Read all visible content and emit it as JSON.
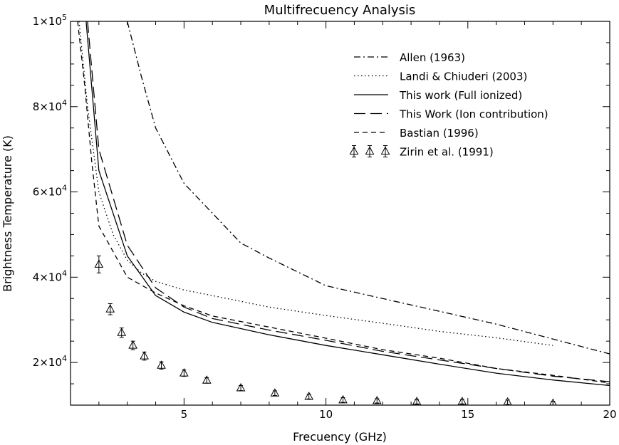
{
  "chart_data": {
    "type": "line",
    "title": "Multifrecuency Analysis",
    "xlabel": "Frecuency (GHz)",
    "ylabel": "Brightness Temperature (K)",
    "xlim": [
      1,
      20
    ],
    "ylim": [
      10000,
      100000
    ],
    "xticks": [
      {
        "value": 5,
        "label": "5"
      },
      {
        "value": 10,
        "label": "10"
      },
      {
        "value": 15,
        "label": "15"
      },
      {
        "value": 20,
        "label": "20"
      }
    ],
    "yticks": [
      {
        "value": 20000,
        "base": "2×10",
        "exp": "4"
      },
      {
        "value": 40000,
        "base": "4×10",
        "exp": "4"
      },
      {
        "value": 60000,
        "base": "6×10",
        "exp": "4"
      },
      {
        "value": 80000,
        "base": "8×10",
        "exp": "4"
      },
      {
        "value": 100000,
        "base": "1×10",
        "exp": "5"
      }
    ],
    "legend_position": "top-right",
    "series": [
      {
        "name": "Allen (1963)",
        "style": "dash-dot",
        "points": [
          [
            3.0,
            100000
          ],
          [
            3.5,
            87000
          ],
          [
            4.0,
            75000
          ],
          [
            5.0,
            62000
          ],
          [
            6.0,
            55000
          ],
          [
            7.0,
            48000
          ],
          [
            8.0,
            44500
          ],
          [
            10.0,
            38000
          ],
          [
            12.0,
            35000
          ],
          [
            14.0,
            32000
          ],
          [
            16.0,
            29000
          ],
          [
            18.0,
            25500
          ],
          [
            20.0,
            22000
          ]
        ]
      },
      {
        "name": "Landi & Chiuderi (2003)",
        "style": "dotted",
        "points": [
          [
            1.3,
            100000
          ],
          [
            1.6,
            80000
          ],
          [
            2.0,
            60000
          ],
          [
            2.5,
            50000
          ],
          [
            3.0,
            44000
          ],
          [
            3.5,
            41000
          ],
          [
            4.0,
            39000
          ],
          [
            5.0,
            37000
          ],
          [
            6.0,
            35700
          ],
          [
            8.0,
            33000
          ],
          [
            10.0,
            31000
          ],
          [
            12.0,
            29200
          ],
          [
            14.0,
            27300
          ],
          [
            16.0,
            25800
          ],
          [
            18.0,
            24000
          ]
        ]
      },
      {
        "name": "This work (Full ionized)",
        "style": "solid",
        "points": [
          [
            1.55,
            100000
          ],
          [
            2.0,
            65000
          ],
          [
            3.0,
            45000
          ],
          [
            4.0,
            35700
          ],
          [
            5.0,
            31800
          ],
          [
            6.0,
            29400
          ],
          [
            8.0,
            26500
          ],
          [
            10.0,
            24000
          ],
          [
            12.0,
            21800
          ],
          [
            14.0,
            19600
          ],
          [
            16.0,
            17500
          ],
          [
            18.0,
            15900
          ],
          [
            20.0,
            14600
          ]
        ]
      },
      {
        "name": "This Work (Ion contribution)",
        "style": "long-dash",
        "points": [
          [
            1.6,
            100000
          ],
          [
            2.0,
            70000
          ],
          [
            3.0,
            47500
          ],
          [
            4.0,
            37500
          ],
          [
            5.0,
            33000
          ],
          [
            6.0,
            30300
          ],
          [
            8.0,
            27600
          ],
          [
            10.0,
            25200
          ],
          [
            12.0,
            22600
          ],
          [
            14.0,
            20600
          ],
          [
            16.0,
            18600
          ],
          [
            18.0,
            16800
          ],
          [
            20.0,
            15500
          ]
        ]
      },
      {
        "name": "Bastian (1996)",
        "style": "short-dash",
        "points": [
          [
            1.25,
            100000
          ],
          [
            1.5,
            85000
          ],
          [
            1.75,
            67000
          ],
          [
            2.0,
            52000
          ],
          [
            2.5,
            46000
          ],
          [
            3.0,
            40000
          ],
          [
            4.0,
            36300
          ],
          [
            5.0,
            33300
          ],
          [
            6.0,
            30900
          ],
          [
            8.0,
            28300
          ],
          [
            10.0,
            25700
          ],
          [
            12.0,
            23000
          ],
          [
            14.0,
            21000
          ],
          [
            16.0,
            18600
          ],
          [
            18.0,
            17000
          ],
          [
            20.0,
            15200
          ]
        ]
      }
    ],
    "markers": {
      "name": "Zirin et al. (1991)",
      "symbol": "triangle-with-error-bars",
      "points": [
        {
          "x": 2.0,
          "y": 43000,
          "err": 2000
        },
        {
          "x": 2.4,
          "y": 32500,
          "err": 1300
        },
        {
          "x": 2.8,
          "y": 27000,
          "err": 1100
        },
        {
          "x": 3.2,
          "y": 24000,
          "err": 1000
        },
        {
          "x": 3.6,
          "y": 21500,
          "err": 950
        },
        {
          "x": 4.2,
          "y": 19300,
          "err": 850
        },
        {
          "x": 5.0,
          "y": 17500,
          "err": 750
        },
        {
          "x": 5.8,
          "y": 15800,
          "err": 650
        },
        {
          "x": 7.0,
          "y": 14000,
          "err": 600
        },
        {
          "x": 8.2,
          "y": 12800,
          "err": 550
        },
        {
          "x": 9.4,
          "y": 12000,
          "err": 550
        },
        {
          "x": 10.6,
          "y": 11200,
          "err": 550
        },
        {
          "x": 11.8,
          "y": 11000,
          "err": 500
        },
        {
          "x": 13.2,
          "y": 10800,
          "err": 500
        },
        {
          "x": 14.8,
          "y": 10800,
          "err": 500
        },
        {
          "x": 16.4,
          "y": 10700,
          "err": 500
        },
        {
          "x": 18.0,
          "y": 10400,
          "err": 500
        }
      ]
    }
  }
}
